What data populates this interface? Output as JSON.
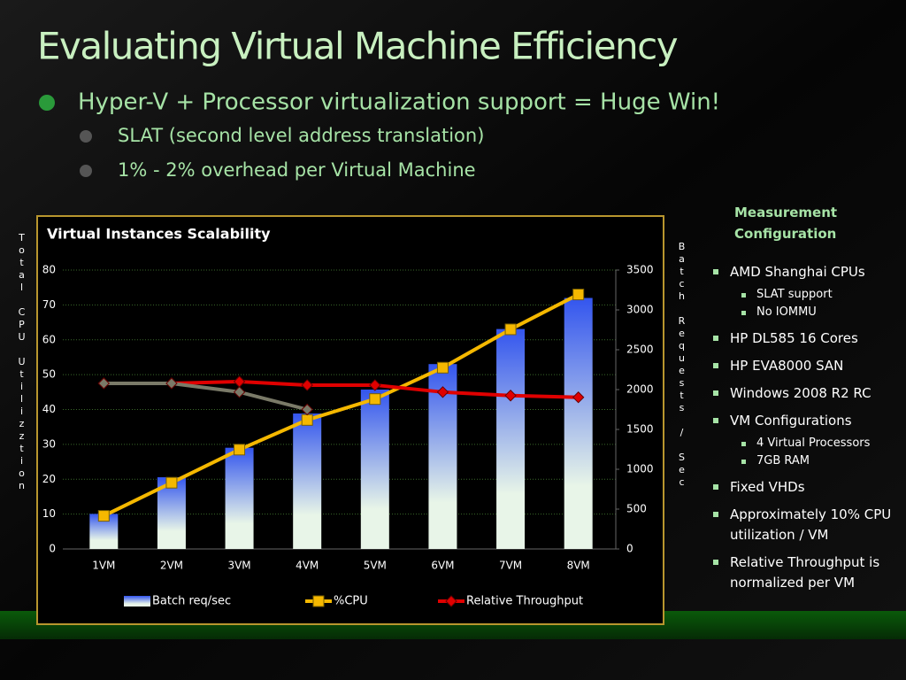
{
  "slide": {
    "title": "Evaluating Virtual Machine Efficiency",
    "bullet": "Hyper-V + Processor virtualization support  =  Huge Win!",
    "subbullets": [
      "SLAT (second level address translation)",
      "1% - 2% overhead per Virtual Machine"
    ]
  },
  "config": {
    "heading": "Measurement Configuration",
    "items": [
      {
        "text": "AMD Shanghai CPUs",
        "sub": [
          "SLAT support",
          "No IOMMU"
        ]
      },
      {
        "text": "HP DL585 16 Cores"
      },
      {
        "text": "HP EVA8000 SAN"
      },
      {
        "text": "Windows 2008 R2 RC"
      },
      {
        "text": "VM Configurations",
        "sub": [
          "4 Virtual Processors",
          "7GB RAM"
        ]
      },
      {
        "text": "Fixed VHDs"
      },
      {
        "text": "Approximately 10% CPU utilization / VM"
      },
      {
        "text": "Relative Throughput is normalized per VM"
      }
    ]
  },
  "chart_data": {
    "type": "bar",
    "title": "Virtual Instances Scalability",
    "y_label": "Total CPU Utilizztion",
    "y2_label": "Batch Requests / Sec",
    "categories": [
      "1VM",
      "2VM",
      "3VM",
      "4VM",
      "5VM",
      "6VM",
      "7VM",
      "8VM"
    ],
    "ylim": [
      0,
      80
    ],
    "yticks": [
      0,
      10,
      20,
      30,
      40,
      50,
      60,
      70,
      80
    ],
    "y2lim": [
      0,
      3500
    ],
    "y2ticks": [
      0,
      500,
      1000,
      1500,
      2000,
      2500,
      3000,
      3500
    ],
    "grid": true,
    "series": [
      {
        "name": "Batch req/sec",
        "type": "bar",
        "axis": "y2",
        "color": "#3355ee",
        "values": [
          440,
          900,
          1270,
          1700,
          2000,
          2320,
          2760,
          3150
        ]
      },
      {
        "name": "%CPU",
        "type": "line",
        "marker": "square",
        "color": "#f5b800",
        "values": [
          9.5,
          19,
          28.5,
          37,
          43,
          52,
          63,
          73
        ]
      },
      {
        "name": "Relative Throughput",
        "type": "line",
        "marker": "diamond",
        "color": "#e00000",
        "values": [
          47.5,
          47.5,
          48,
          47,
          47,
          45,
          44,
          43.5
        ]
      },
      {
        "type": "line",
        "marker": "diamond",
        "color": "#7a7a68",
        "values": [
          47.5,
          47.5,
          45,
          40,
          null,
          null,
          null,
          null
        ]
      }
    ]
  }
}
